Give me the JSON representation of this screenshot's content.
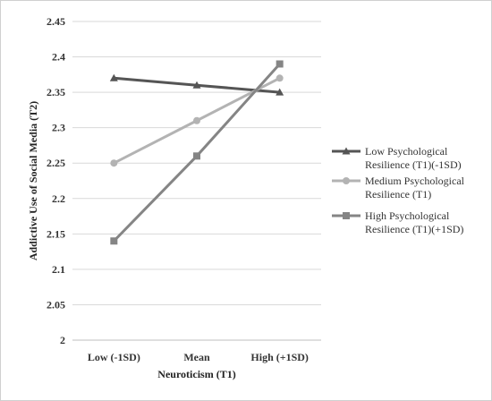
{
  "chart_data": {
    "type": "line",
    "xlabel": "Neuroticism (T1)",
    "ylabel": "Addictive Use of Social Media (T2)",
    "categories": [
      "Low (-1SD)",
      "Mean",
      "High (+1SD)"
    ],
    "ylim": [
      2,
      2.45
    ],
    "yticks": [
      "2",
      "2.05",
      "2.1",
      "2.15",
      "2.2",
      "2.25",
      "2.3",
      "2.35",
      "2.4",
      "2.45"
    ],
    "grid": true,
    "legend_position": "right",
    "series": [
      {
        "name": "Low Psychological Resilience (T1)(-1SD)",
        "legend_lines": [
          "Low Psychological",
          "Resilience (T1)(-1SD)"
        ],
        "values": [
          2.37,
          2.36,
          2.35
        ],
        "color": "#555555",
        "marker": "triangle"
      },
      {
        "name": "Medium Psychological Resilience (T1)",
        "legend_lines": [
          "Medium Psychological",
          "Resilience (T1)"
        ],
        "values": [
          2.25,
          2.31,
          2.37
        ],
        "color": "#b3b3b3",
        "marker": "circle"
      },
      {
        "name": "High Psychological Resilience (T1)(+1SD)",
        "legend_lines": [
          "High Psychological",
          "Resilience (T1)(+1SD)"
        ],
        "values": [
          2.14,
          2.26,
          2.39
        ],
        "color": "#858585",
        "marker": "square"
      }
    ]
  }
}
